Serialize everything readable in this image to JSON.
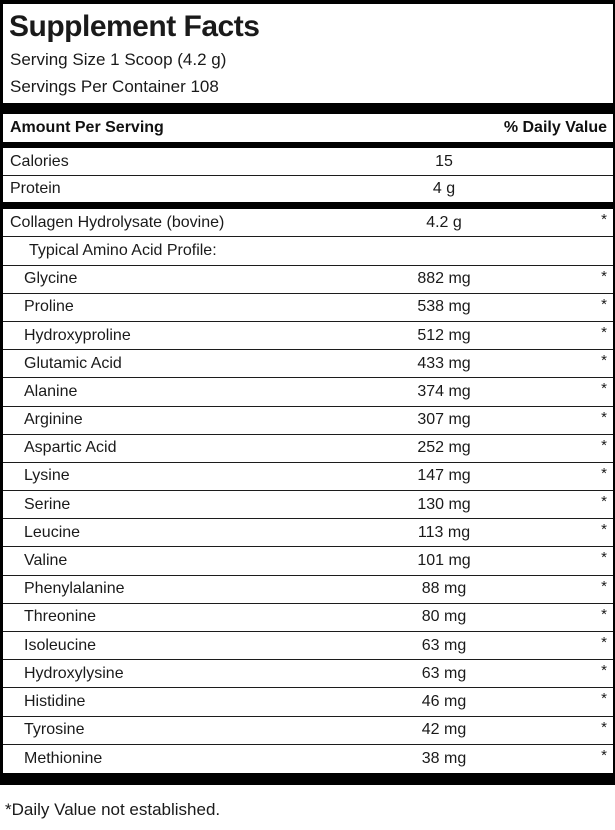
{
  "label": {
    "title": "Supplement Facts",
    "serving_size": "Serving Size 1 Scoop (4.2 g)",
    "servings_per_container": "Servings Per Container 108",
    "header": {
      "amount_per_serving": "Amount Per Serving",
      "daily_value": "% Daily Value"
    },
    "rows": [
      {
        "name": "Calories",
        "amount": "15",
        "dv": "",
        "indent": 0,
        "after": "thin"
      },
      {
        "name": "Protein",
        "amount": "4 g",
        "dv": "",
        "indent": 0,
        "after": "thick"
      },
      {
        "name": "Collagen Hydrolysate (bovine)",
        "amount": "4.2 g",
        "dv": "*",
        "indent": 0,
        "after": "thin"
      },
      {
        "name": "Typical Amino Acid Profile:",
        "amount": "",
        "dv": "",
        "indent": 2,
        "after": "thin"
      },
      {
        "name": "Glycine",
        "amount": "882 mg",
        "dv": "*",
        "indent": 1,
        "after": "thin"
      },
      {
        "name": "Proline",
        "amount": "538 mg",
        "dv": "*",
        "indent": 1,
        "after": "thin"
      },
      {
        "name": "Hydroxyproline",
        "amount": "512 mg",
        "dv": "*",
        "indent": 1,
        "after": "thin"
      },
      {
        "name": "Glutamic Acid",
        "amount": "433 mg",
        "dv": "*",
        "indent": 1,
        "after": "thin"
      },
      {
        "name": "Alanine",
        "amount": "374 mg",
        "dv": "*",
        "indent": 1,
        "after": "thin"
      },
      {
        "name": "Arginine",
        "amount": "307 mg",
        "dv": "*",
        "indent": 1,
        "after": "thin"
      },
      {
        "name": "Aspartic Acid",
        "amount": "252 mg",
        "dv": "*",
        "indent": 1,
        "after": "thin"
      },
      {
        "name": "Lysine",
        "amount": "147 mg",
        "dv": "*",
        "indent": 1,
        "after": "thin"
      },
      {
        "name": "Serine",
        "amount": "130 mg",
        "dv": "*",
        "indent": 1,
        "after": "thin"
      },
      {
        "name": "Leucine",
        "amount": "113 mg",
        "dv": "*",
        "indent": 1,
        "after": "thin"
      },
      {
        "name": "Valine",
        "amount": "101 mg",
        "dv": "*",
        "indent": 1,
        "after": "thin"
      },
      {
        "name": "Phenylalanine",
        "amount": "88 mg",
        "dv": "*",
        "indent": 1,
        "after": "thin"
      },
      {
        "name": "Threonine",
        "amount": "80 mg",
        "dv": "*",
        "indent": 1,
        "after": "thin"
      },
      {
        "name": "Isoleucine",
        "amount": "63 mg",
        "dv": "*",
        "indent": 1,
        "after": "thin"
      },
      {
        "name": "Hydroxylysine",
        "amount": "63 mg",
        "dv": "*",
        "indent": 1,
        "after": "thin"
      },
      {
        "name": "Histidine",
        "amount": "46 mg",
        "dv": "*",
        "indent": 1,
        "after": "thin"
      },
      {
        "name": "Tyrosine",
        "amount": "42 mg",
        "dv": "*",
        "indent": 1,
        "after": "thin"
      },
      {
        "name": "Methionine",
        "amount": "38 mg",
        "dv": "*",
        "indent": 1,
        "after": "none"
      }
    ],
    "footnote": "*Daily Value not established."
  },
  "colors": {
    "background": "#ffffff",
    "text": "#1a1a1a",
    "bars_and_borders": "#000000"
  }
}
